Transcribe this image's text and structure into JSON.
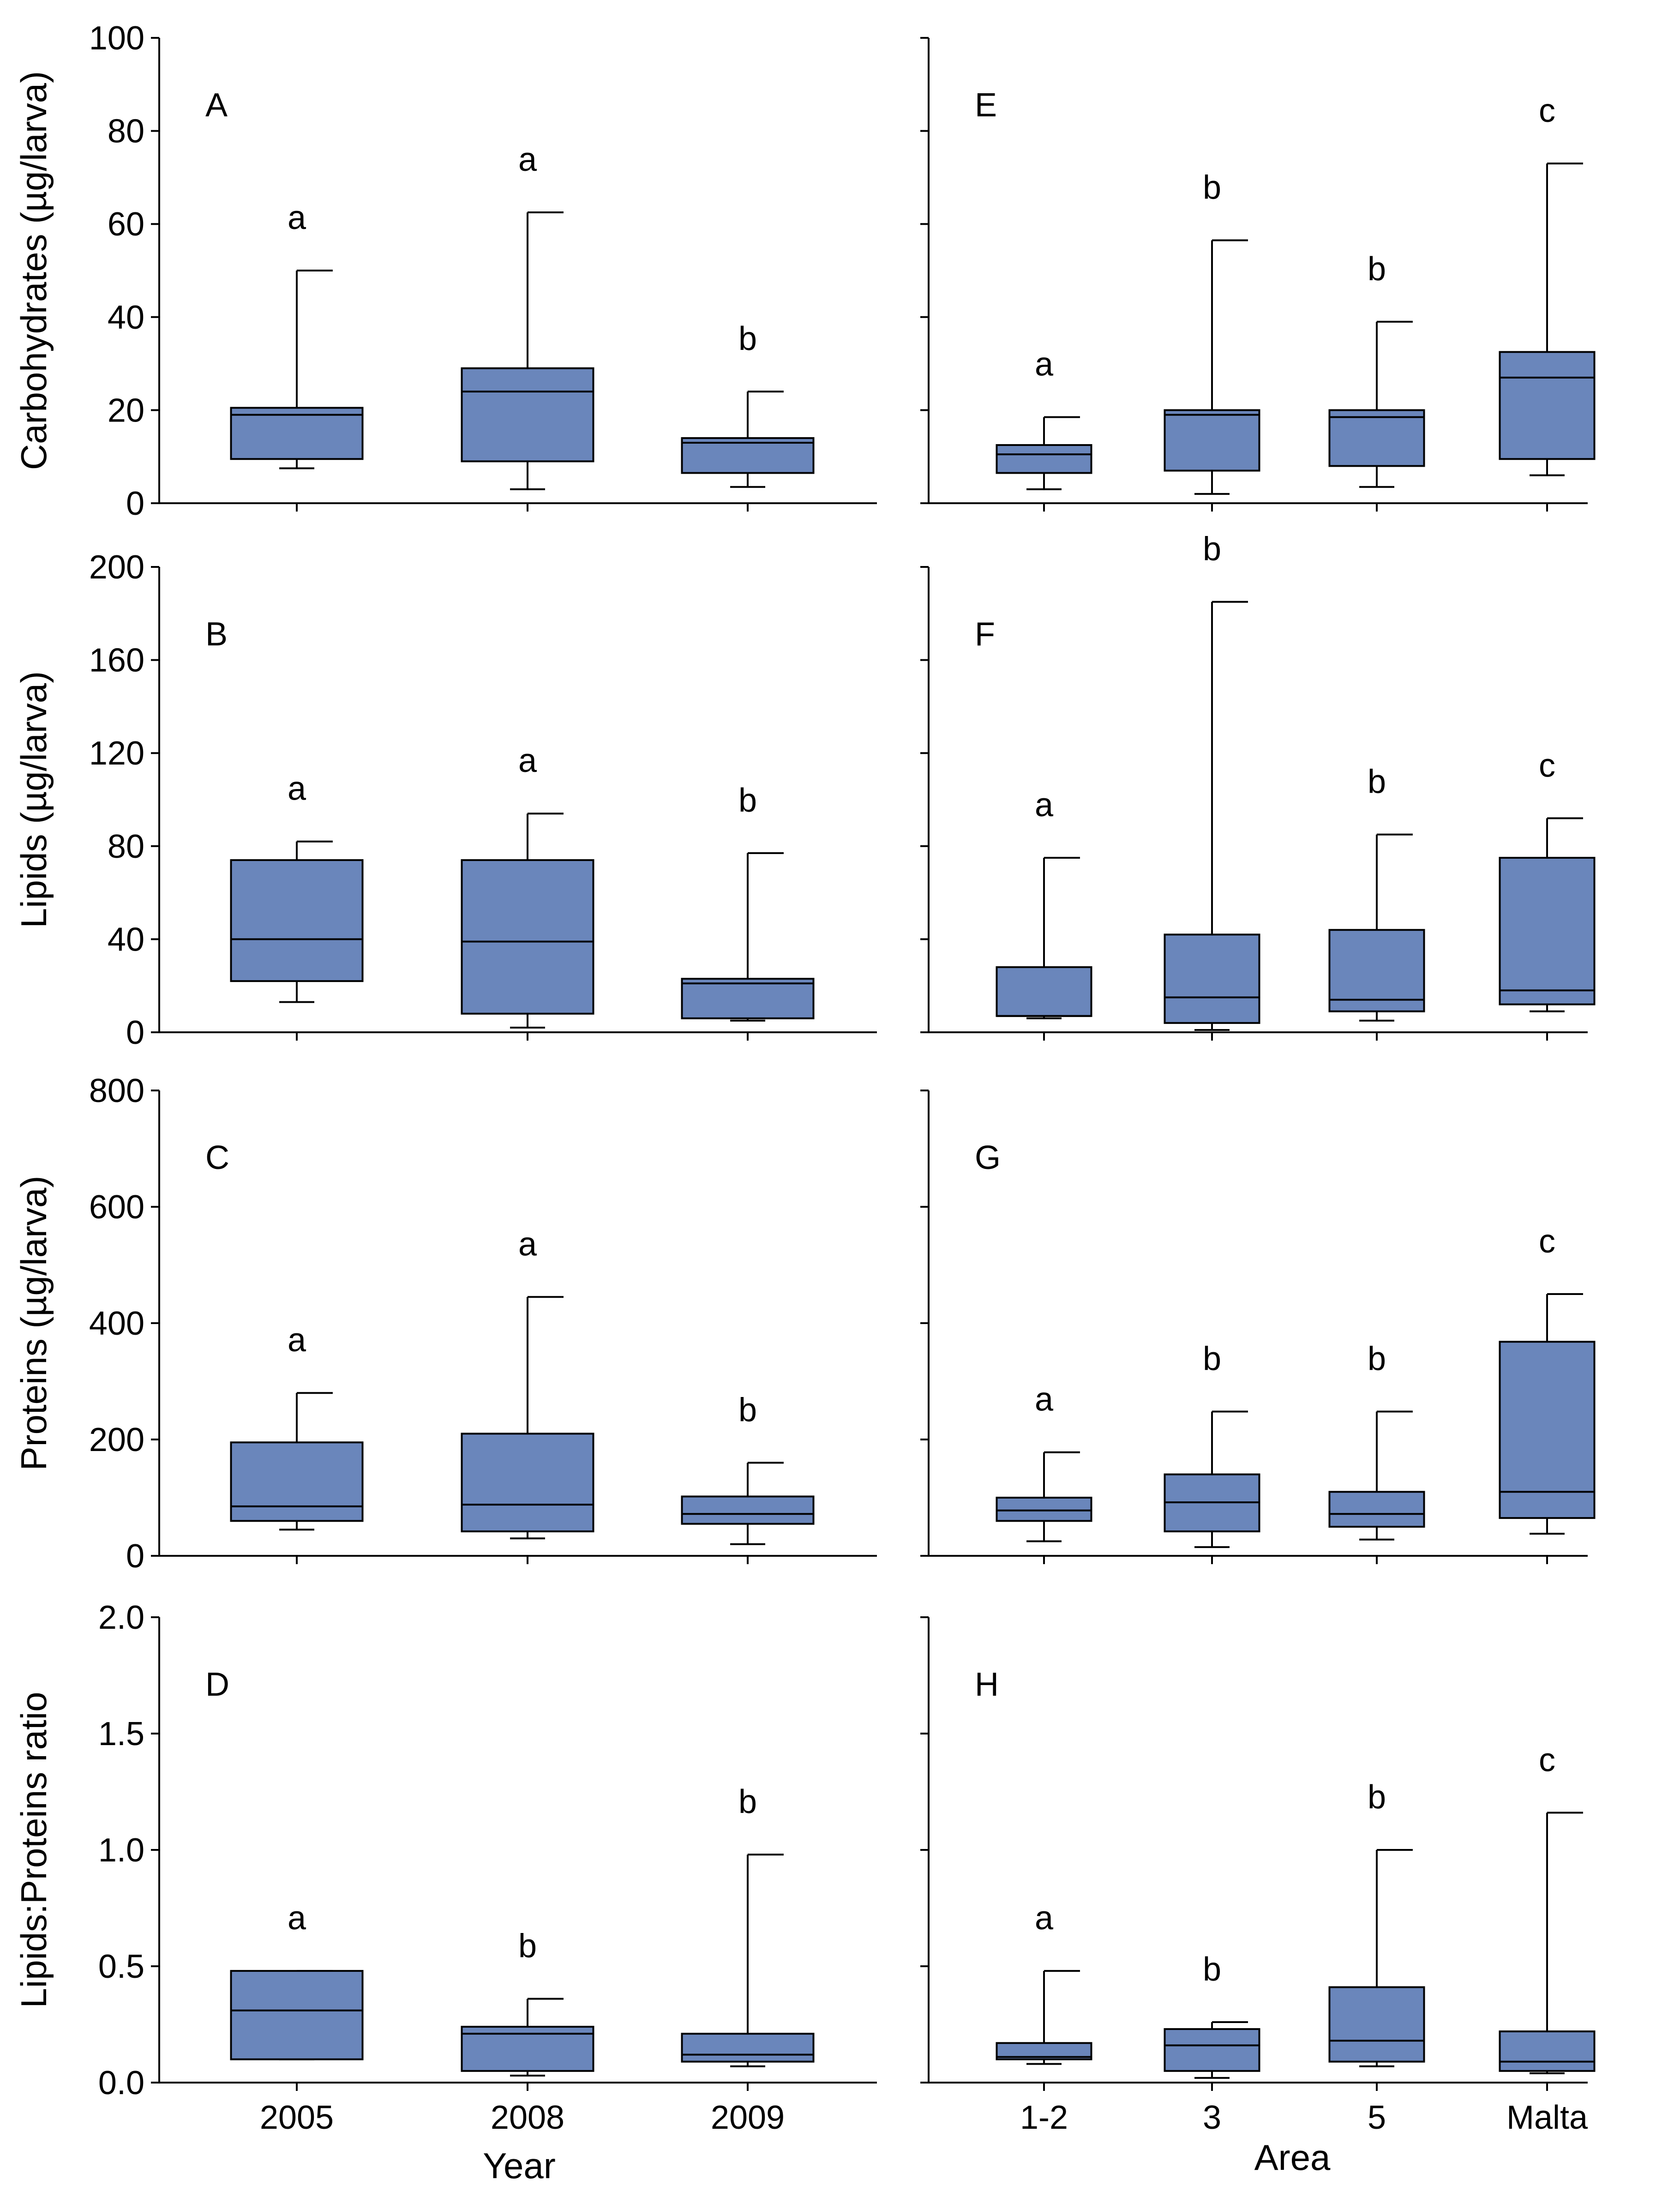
{
  "colors": {
    "box_fill": "#6a86bb",
    "stroke": "#000000",
    "background": "#ffffff"
  },
  "axis_labels": {
    "xlabel_left": "Year",
    "xlabel_right": "Area",
    "ylabels": [
      "Carbohydrates (µg/larva)",
      "Lipids (µg/larva)",
      "Proteins (µg/larva)",
      "Lipids:Proteins ratio"
    ]
  },
  "chart_data": [
    {
      "type": "box",
      "panel": "A",
      "column": "left",
      "row": 0,
      "categories": [
        "2005",
        "2008",
        "2009"
      ],
      "ylabel": "Carbohydrates (µg/larva)",
      "xlabel": "",
      "ylim": [
        0,
        100
      ],
      "yticks": [
        "0",
        "20",
        "40",
        "60",
        "80",
        "100"
      ],
      "boxes": [
        {
          "category": "2005",
          "min": 7.5,
          "q1": 9.5,
          "median": 19,
          "q3": 20.5,
          "max": 50,
          "sig": "a"
        },
        {
          "category": "2008",
          "min": 3,
          "q1": 9,
          "median": 24,
          "q3": 29,
          "max": 62.5,
          "sig": "a"
        },
        {
          "category": "2009",
          "min": 3.5,
          "q1": 6.5,
          "median": 13,
          "q3": 14,
          "max": 24,
          "sig": "b"
        }
      ]
    },
    {
      "type": "box",
      "panel": "B",
      "column": "left",
      "row": 1,
      "categories": [
        "2005",
        "2008",
        "2009"
      ],
      "ylabel": "Lipids (µg/larva)",
      "xlabel": "",
      "ylim": [
        0,
        200
      ],
      "yticks": [
        "0",
        "40",
        "80",
        "120",
        "160",
        "200"
      ],
      "boxes": [
        {
          "category": "2005",
          "min": 13,
          "q1": 22,
          "median": 40,
          "q3": 74,
          "max": 82,
          "sig": "a"
        },
        {
          "category": "2008",
          "min": 2,
          "q1": 8,
          "median": 39,
          "q3": 74,
          "max": 94,
          "sig": "a"
        },
        {
          "category": "2009",
          "min": 5,
          "q1": 6,
          "median": 21,
          "q3": 23,
          "max": 77,
          "sig": "b"
        }
      ]
    },
    {
      "type": "box",
      "panel": "C",
      "column": "left",
      "row": 2,
      "categories": [
        "2005",
        "2008",
        "2009"
      ],
      "ylabel": "Proteins (µg/larva)",
      "xlabel": "",
      "ylim": [
        0,
        800
      ],
      "yticks": [
        "0",
        "200",
        "400",
        "600",
        "800"
      ],
      "boxes": [
        {
          "category": "2005",
          "min": 45,
          "q1": 60,
          "median": 85,
          "q3": 195,
          "max": 280,
          "sig": "a"
        },
        {
          "category": "2008",
          "min": 30,
          "q1": 42,
          "median": 88,
          "q3": 210,
          "max": 445,
          "sig": "a"
        },
        {
          "category": "2009",
          "min": 20,
          "q1": 55,
          "median": 72,
          "q3": 102,
          "max": 160,
          "sig": "b"
        }
      ]
    },
    {
      "type": "box",
      "panel": "D",
      "column": "left",
      "row": 3,
      "categories": [
        "2005",
        "2008",
        "2009"
      ],
      "ylabel": "Lipids:Proteins ratio",
      "xlabel": "Year",
      "ylim": [
        0,
        2
      ],
      "yticks": [
        "0.0",
        "0.5",
        "1.0",
        "1.5",
        "2.0"
      ],
      "boxes": [
        {
          "category": "2005",
          "min": 0.1,
          "q1": 0.1,
          "median": 0.31,
          "q3": 0.48,
          "max": 0.48,
          "sig": "a"
        },
        {
          "category": "2008",
          "min": 0.03,
          "q1": 0.05,
          "median": 0.21,
          "q3": 0.24,
          "max": 0.36,
          "sig": "b"
        },
        {
          "category": "2009",
          "min": 0.07,
          "q1": 0.09,
          "median": 0.12,
          "q3": 0.21,
          "max": 0.98,
          "sig": "b"
        }
      ]
    },
    {
      "type": "box",
      "panel": "E",
      "column": "right",
      "row": 0,
      "categories": [
        "1-2",
        "3",
        "5",
        "Malta"
      ],
      "xlabel": "",
      "ylim": [
        0,
        100
      ],
      "boxes": [
        {
          "category": "1-2",
          "min": 3,
          "q1": 6.5,
          "median": 10.5,
          "q3": 12.5,
          "max": 18.5,
          "sig": "a"
        },
        {
          "category": "3",
          "min": 2,
          "q1": 7,
          "median": 19,
          "q3": 20,
          "max": 56.5,
          "sig": "b"
        },
        {
          "category": "5",
          "min": 3.5,
          "q1": 8,
          "median": 18.5,
          "q3": 20,
          "max": 39,
          "sig": "b"
        },
        {
          "category": "Malta",
          "min": 6,
          "q1": 9.5,
          "median": 27,
          "q3": 32.5,
          "max": 73,
          "sig": "c"
        }
      ]
    },
    {
      "type": "box",
      "panel": "F",
      "column": "right",
      "row": 1,
      "categories": [
        "1-2",
        "3",
        "5",
        "Malta"
      ],
      "xlabel": "",
      "ylim": [
        0,
        200
      ],
      "boxes": [
        {
          "category": "1-2",
          "min": 6,
          "q1": 7,
          "median": 7,
          "q3": 28,
          "max": 75,
          "sig": "a"
        },
        {
          "category": "3",
          "min": 1,
          "q1": 4,
          "median": 15,
          "q3": 42,
          "max": 185,
          "sig": "b"
        },
        {
          "category": "5",
          "min": 5,
          "q1": 9,
          "median": 14,
          "q3": 44,
          "max": 85,
          "sig": "b"
        },
        {
          "category": "Malta",
          "min": 9,
          "q1": 12,
          "median": 18,
          "q3": 75,
          "max": 92,
          "sig": "c"
        }
      ]
    },
    {
      "type": "box",
      "panel": "G",
      "column": "right",
      "row": 2,
      "categories": [
        "1-2",
        "3",
        "5",
        "Malta"
      ],
      "xlabel": "",
      "ylim": [
        0,
        800
      ],
      "boxes": [
        {
          "category": "1-2",
          "min": 25,
          "q1": 60,
          "median": 78,
          "q3": 100,
          "max": 178,
          "sig": "a"
        },
        {
          "category": "3",
          "min": 15,
          "q1": 42,
          "median": 92,
          "q3": 140,
          "max": 248,
          "sig": "b"
        },
        {
          "category": "5",
          "min": 28,
          "q1": 50,
          "median": 72,
          "q3": 110,
          "max": 248,
          "sig": "b"
        },
        {
          "category": "Malta",
          "min": 38,
          "q1": 65,
          "median": 110,
          "q3": 368,
          "max": 450,
          "sig": "c"
        }
      ]
    },
    {
      "type": "box",
      "panel": "H",
      "column": "right",
      "row": 3,
      "categories": [
        "1-2",
        "3",
        "5",
        "Malta"
      ],
      "xlabel": "Area",
      "ylim": [
        0,
        2
      ],
      "boxes": [
        {
          "category": "1-2",
          "min": 0.08,
          "q1": 0.1,
          "median": 0.11,
          "q3": 0.17,
          "max": 0.48,
          "sig": "a"
        },
        {
          "category": "3",
          "min": 0.02,
          "q1": 0.05,
          "median": 0.16,
          "q3": 0.23,
          "max": 0.26,
          "sig": "b"
        },
        {
          "category": "5",
          "min": 0.07,
          "q1": 0.09,
          "median": 0.18,
          "q3": 0.41,
          "max": 1.0,
          "sig": "b"
        },
        {
          "category": "Malta",
          "min": 0.04,
          "q1": 0.05,
          "median": 0.09,
          "q3": 0.22,
          "max": 1.16,
          "sig": "c"
        }
      ]
    }
  ]
}
